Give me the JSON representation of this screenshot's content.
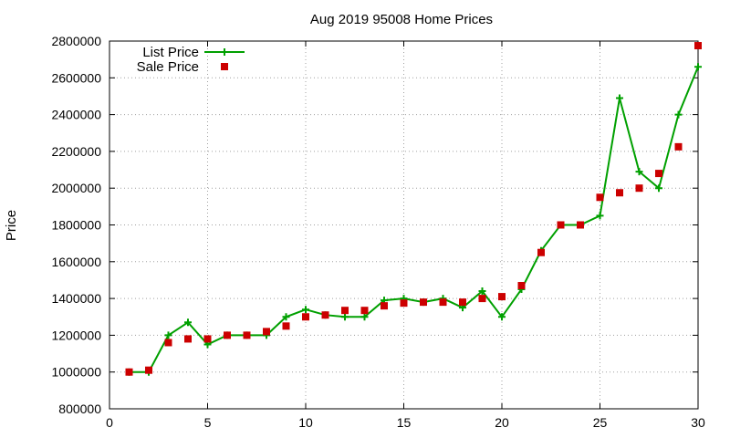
{
  "chart_data": {
    "type": "line",
    "title": "Aug 2019 95008 Home Prices",
    "xlabel": "",
    "ylabel": "Price",
    "xlim": [
      0,
      30
    ],
    "ylim": [
      800000,
      2800000
    ],
    "x_ticks": [
      0,
      5,
      10,
      15,
      20,
      25,
      30
    ],
    "y_ticks": [
      800000,
      1000000,
      1200000,
      1400000,
      1600000,
      1800000,
      2000000,
      2200000,
      2400000,
      2600000,
      2800000
    ],
    "grid": true,
    "legend_position": "top-left",
    "x": [
      1,
      2,
      3,
      4,
      5,
      6,
      7,
      8,
      9,
      10,
      11,
      12,
      13,
      14,
      15,
      16,
      17,
      18,
      19,
      20,
      21,
      22,
      23,
      24,
      25,
      26,
      27,
      28,
      29,
      30
    ],
    "series": [
      {
        "name": "List Price",
        "style": "line+cross",
        "color": "#00a000",
        "values": [
          1000000,
          1000000,
          1200000,
          1270000,
          1150000,
          1200000,
          1200000,
          1200000,
          1300000,
          1340000,
          1310000,
          1300000,
          1300000,
          1390000,
          1400000,
          1380000,
          1400000,
          1350000,
          1440000,
          1300000,
          1450000,
          1660000,
          1800000,
          1800000,
          1850000,
          2490000,
          2090000,
          2000000,
          2400000,
          2660000
        ]
      },
      {
        "name": "Sale Price",
        "style": "square-points",
        "color": "#cc0000",
        "values": [
          1000000,
          1010000,
          1160000,
          1180000,
          1180000,
          1200000,
          1200000,
          1220000,
          1250000,
          1300000,
          1310000,
          1335000,
          1335000,
          1360000,
          1375000,
          1380000,
          1380000,
          1380000,
          1400000,
          1410000,
          1470000,
          1650000,
          1800000,
          1800000,
          1950000,
          1975000,
          2000000,
          2080000,
          2225000,
          2775000
        ]
      }
    ]
  }
}
